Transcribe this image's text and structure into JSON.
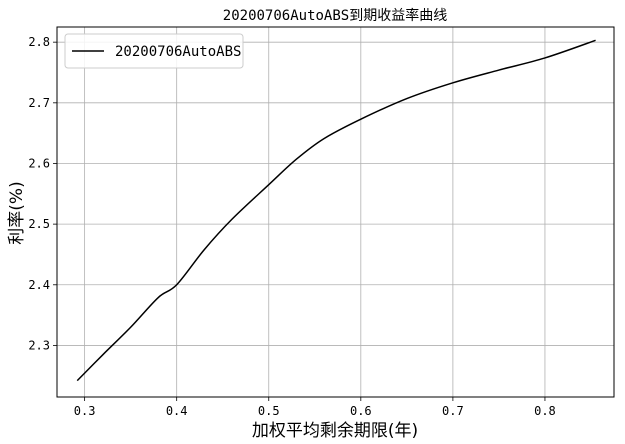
{
  "chart_data": {
    "type": "line",
    "title": "20200706AutoABS到期收益率曲线",
    "xlabel": "加权平均剩余期限(年)",
    "ylabel": "利率(%)",
    "xlim": [
      0.27,
      0.875
    ],
    "ylim": [
      2.215,
      2.825
    ],
    "xticks": [
      0.3,
      0.4,
      0.5,
      0.6,
      0.7,
      0.8
    ],
    "xtick_labels": [
      "0.3",
      "0.4",
      "0.5",
      "0.6",
      "0.7",
      "0.8"
    ],
    "yticks": [
      2.3,
      2.4,
      2.5,
      2.6,
      2.7,
      2.8
    ],
    "ytick_labels": [
      "2.3",
      "2.4",
      "2.5",
      "2.6",
      "2.7",
      "2.8"
    ],
    "grid": true,
    "legend_position": "top-left",
    "series": [
      {
        "name": "20200706AutoABS",
        "color": "#000000",
        "x": [
          0.292,
          0.32,
          0.35,
          0.38,
          0.4,
          0.43,
          0.46,
          0.5,
          0.53,
          0.56,
          0.6,
          0.65,
          0.7,
          0.75,
          0.8,
          0.855
        ],
        "y": [
          2.242,
          2.285,
          2.33,
          2.379,
          2.4,
          2.458,
          2.508,
          2.565,
          2.607,
          2.641,
          2.673,
          2.707,
          2.733,
          2.754,
          2.774,
          2.803
        ]
      }
    ]
  }
}
